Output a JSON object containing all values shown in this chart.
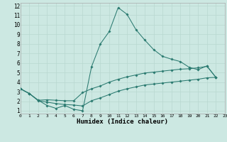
{
  "xlabel": "Humidex (Indice chaleur)",
  "background_color": "#cce8e2",
  "grid_color": "#b8d8d0",
  "line_color": "#2a7a70",
  "xlim": [
    0,
    23
  ],
  "ylim": [
    0.7,
    12.3
  ],
  "xticks": [
    0,
    1,
    2,
    3,
    4,
    5,
    6,
    7,
    8,
    9,
    10,
    11,
    12,
    13,
    14,
    15,
    16,
    17,
    18,
    19,
    20,
    21,
    22,
    23
  ],
  "yticks": [
    1,
    2,
    3,
    4,
    5,
    6,
    7,
    8,
    9,
    10,
    11,
    12
  ],
  "curve_top_x": [
    0,
    1,
    2,
    3,
    4,
    5,
    6,
    7,
    8,
    9,
    10,
    11,
    12,
    13,
    14,
    15,
    16,
    17,
    18,
    19,
    20,
    21,
    22
  ],
  "curve_top_y": [
    3.3,
    2.8,
    2.1,
    1.55,
    1.25,
    1.55,
    1.15,
    1.0,
    5.6,
    8.0,
    9.3,
    11.8,
    11.1,
    9.5,
    8.4,
    7.4,
    6.7,
    6.4,
    6.15,
    5.55,
    5.3,
    5.7,
    4.5
  ],
  "curve_mid_x": [
    0,
    1,
    2,
    3,
    4,
    5,
    6,
    7,
    8,
    9,
    10,
    11,
    12,
    13,
    14,
    15,
    16,
    17,
    18,
    19,
    20,
    21,
    22
  ],
  "curve_mid_y": [
    3.3,
    2.8,
    2.1,
    2.15,
    2.1,
    2.05,
    2.05,
    2.9,
    3.3,
    3.6,
    4.0,
    4.3,
    4.55,
    4.75,
    4.95,
    5.05,
    5.15,
    5.25,
    5.35,
    5.4,
    5.5,
    5.65,
    4.5
  ],
  "curve_bot_x": [
    0,
    1,
    2,
    3,
    4,
    5,
    6,
    7,
    8,
    9,
    10,
    11,
    12,
    13,
    14,
    15,
    16,
    17,
    18,
    19,
    20,
    21,
    22
  ],
  "curve_bot_y": [
    3.3,
    2.8,
    2.05,
    1.9,
    1.75,
    1.65,
    1.6,
    1.5,
    2.05,
    2.35,
    2.7,
    3.05,
    3.3,
    3.5,
    3.7,
    3.8,
    3.9,
    4.0,
    4.1,
    4.2,
    4.3,
    4.45,
    4.5
  ]
}
